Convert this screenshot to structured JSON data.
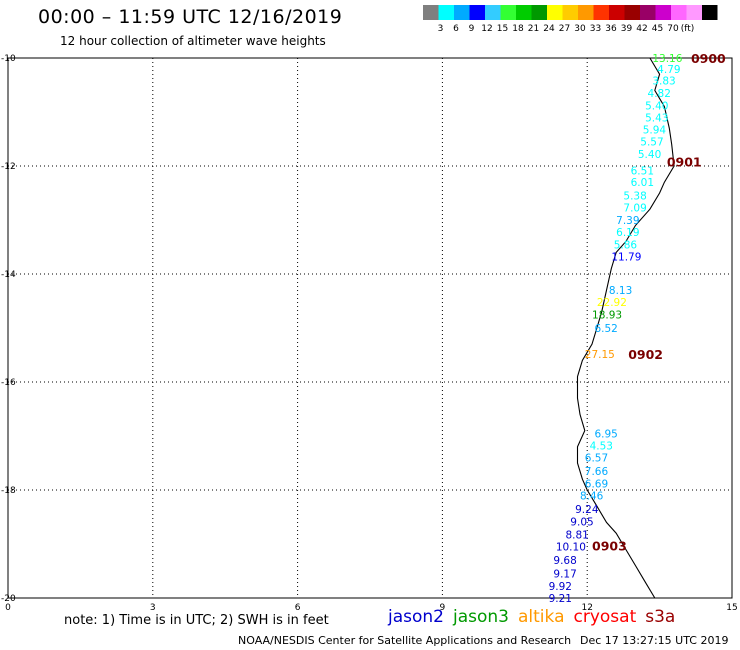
{
  "header": {
    "title": "00:00 – 11:59 UTC 12/16/2019",
    "subtitle": "12 hour collection of altimeter wave heights"
  },
  "colorbar": {
    "colors": [
      "#7f7f7f",
      "#00ffff",
      "#00aaff",
      "#0000ff",
      "#33ccff",
      "#33ff33",
      "#00cc00",
      "#009900",
      "#ffff00",
      "#ffcc00",
      "#ff9900",
      "#ff3300",
      "#cc0000",
      "#990000",
      "#990066",
      "#cc00cc",
      "#ff66ff",
      "#ff99ff",
      "#000000"
    ],
    "labels": [
      "3",
      "6",
      "9",
      "12",
      "15",
      "18",
      "21",
      "24",
      "27",
      "30",
      "33",
      "36",
      "39",
      "42",
      "45",
      "70"
    ],
    "unit": "(ft)"
  },
  "axes": {
    "lon_ticks": [
      0,
      3,
      6,
      9,
      12,
      15
    ],
    "lat_ticks": [
      -10,
      -12,
      -14,
      -16,
      -18,
      -20
    ],
    "lon_range": [
      0,
      15
    ],
    "lat_range": [
      -20,
      -10
    ]
  },
  "coastline": [
    [
      13.3,
      -10.0
    ],
    [
      13.5,
      -10.3
    ],
    [
      13.4,
      -10.6
    ],
    [
      13.6,
      -10.9
    ],
    [
      13.7,
      -11.3
    ],
    [
      13.75,
      -11.6
    ],
    [
      13.8,
      -12.0
    ],
    [
      13.6,
      -12.3
    ],
    [
      13.5,
      -12.5
    ],
    [
      13.3,
      -12.8
    ],
    [
      13.0,
      -13.1
    ],
    [
      12.8,
      -13.4
    ],
    [
      12.6,
      -13.6
    ],
    [
      12.5,
      -13.9
    ],
    [
      12.4,
      -14.3
    ],
    [
      12.3,
      -14.7
    ],
    [
      12.2,
      -15.0
    ],
    [
      12.1,
      -15.3
    ],
    [
      11.9,
      -15.6
    ],
    [
      11.8,
      -15.9
    ],
    [
      11.8,
      -16.3
    ],
    [
      11.85,
      -16.6
    ],
    [
      11.95,
      -16.9
    ],
    [
      11.8,
      -17.2
    ],
    [
      11.8,
      -17.5
    ],
    [
      11.9,
      -17.8
    ],
    [
      12.0,
      -18.0
    ],
    [
      12.2,
      -18.3
    ],
    [
      12.4,
      -18.6
    ],
    [
      12.6,
      -18.8
    ],
    [
      12.8,
      -19.1
    ],
    [
      13.0,
      -19.4
    ],
    [
      13.2,
      -19.7
    ],
    [
      13.4,
      -20.0
    ]
  ],
  "observations": [
    {
      "label": "13.16",
      "lon": 13.35,
      "lat": -10.0,
      "color": "#33ff33"
    },
    {
      "label": "4.79",
      "lon": 13.45,
      "lat": -10.2,
      "color": "#00ffff"
    },
    {
      "label": "3.83",
      "lon": 13.35,
      "lat": -10.42,
      "color": "#00ffff"
    },
    {
      "label": "4.82",
      "lon": 13.25,
      "lat": -10.65,
      "color": "#00ffff"
    },
    {
      "label": "5.40",
      "lon": 13.2,
      "lat": -10.88,
      "color": "#00ffff"
    },
    {
      "label": "5.43",
      "lon": 13.2,
      "lat": -11.1,
      "color": "#00ffff"
    },
    {
      "label": "5.94",
      "lon": 13.15,
      "lat": -11.32,
      "color": "#00ffff"
    },
    {
      "label": "5.57",
      "lon": 13.1,
      "lat": -11.55,
      "color": "#00ffff"
    },
    {
      "label": "5.40",
      "lon": 13.05,
      "lat": -11.78,
      "color": "#00ffff"
    },
    {
      "label": "6.51",
      "lon": 12.9,
      "lat": -12.08,
      "color": "#00ffff"
    },
    {
      "label": "6.01",
      "lon": 12.9,
      "lat": -12.3,
      "color": "#00ffff"
    },
    {
      "label": "5.38",
      "lon": 12.75,
      "lat": -12.55,
      "color": "#00ffff"
    },
    {
      "label": "7.09",
      "lon": 12.75,
      "lat": -12.77,
      "color": "#00ffff"
    },
    {
      "label": "7.39",
      "lon": 12.6,
      "lat": -13.0,
      "color": "#00aaff"
    },
    {
      "label": "6.19",
      "lon": 12.6,
      "lat": -13.22,
      "color": "#00ffff"
    },
    {
      "label": "5.86",
      "lon": 12.55,
      "lat": -13.45,
      "color": "#00ffff"
    },
    {
      "label": "11.79",
      "lon": 12.5,
      "lat": -13.68,
      "color": "#0000ff"
    },
    {
      "label": "8.13",
      "lon": 12.45,
      "lat": -14.3,
      "color": "#00aaff"
    },
    {
      "label": "22.92",
      "lon": 12.2,
      "lat": -14.52,
      "color": "#ffff00"
    },
    {
      "label": "18.93",
      "lon": 12.1,
      "lat": -14.75,
      "color": "#009900"
    },
    {
      "label": "6.52",
      "lon": 12.15,
      "lat": -15.0,
      "color": "#00aaff"
    },
    {
      "label": "27.15",
      "lon": 11.95,
      "lat": -15.48,
      "color": "#ff9900"
    },
    {
      "label": "6.95",
      "lon": 12.15,
      "lat": -16.95,
      "color": "#00aaff"
    },
    {
      "label": "4.53",
      "lon": 12.05,
      "lat": -17.18,
      "color": "#00ffff"
    },
    {
      "label": "6.57",
      "lon": 11.95,
      "lat": -17.4,
      "color": "#00aaff"
    },
    {
      "label": "7.66",
      "lon": 11.95,
      "lat": -17.65,
      "color": "#00aaff"
    },
    {
      "label": "6.69",
      "lon": 11.95,
      "lat": -17.88,
      "color": "#00aaff"
    },
    {
      "label": "8.46",
      "lon": 11.85,
      "lat": -18.1,
      "color": "#00aaff"
    },
    {
      "label": "9.24",
      "lon": 11.75,
      "lat": -18.35,
      "color": "#0000cc"
    },
    {
      "label": "9.05",
      "lon": 11.65,
      "lat": -18.58,
      "color": "#0000cc"
    },
    {
      "label": "8.81",
      "lon": 11.55,
      "lat": -18.82,
      "color": "#0000cc"
    },
    {
      "label": "10.10",
      "lon": 11.35,
      "lat": -19.05,
      "color": "#0000cc"
    },
    {
      "label": "9.68",
      "lon": 11.3,
      "lat": -19.3,
      "color": "#0000cc"
    },
    {
      "label": "9.17",
      "lon": 11.3,
      "lat": -19.55,
      "color": "#0000cc"
    },
    {
      "label": "9.92",
      "lon": 11.2,
      "lat": -19.78,
      "color": "#0000cc"
    },
    {
      "label": "9.21",
      "lon": 11.2,
      "lat": -20.0,
      "color": "#0000cc"
    }
  ],
  "pass_times": [
    {
      "label": "0900",
      "lon": 14.15,
      "lat": -10.0
    },
    {
      "label": "0901",
      "lon": 13.65,
      "lat": -11.92
    },
    {
      "label": "0902",
      "lon": 12.85,
      "lat": -15.48
    },
    {
      "label": "0903",
      "lon": 12.1,
      "lat": -19.03
    }
  ],
  "note": "note: 1) Time is in UTC; 2) SWH is in feet",
  "legend": [
    {
      "label": "jason2",
      "color": "#0000cc"
    },
    {
      "label": "jason3",
      "color": "#009900"
    },
    {
      "label": "altika",
      "color": "#ff9900"
    },
    {
      "label": "cryosat",
      "color": "#ff0000"
    },
    {
      "label": "s3a",
      "color": "#990000"
    }
  ],
  "footer": {
    "credit": "NOAA/NESDIS Center for Satellite Applications and Research",
    "date": "Dec 17 13:27:15 UTC 2019"
  }
}
